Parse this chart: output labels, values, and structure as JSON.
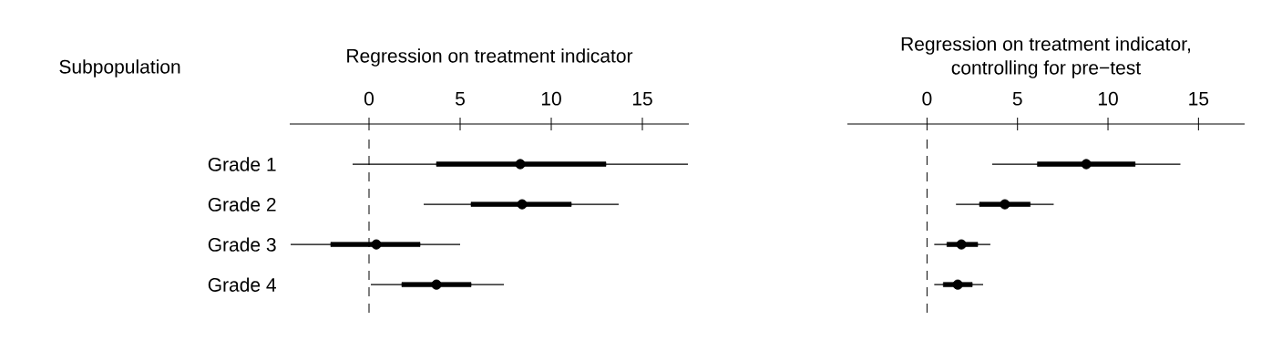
{
  "chart_data": [
    {
      "type": "box",
      "orientation": "horizontal",
      "title": "Regression on treatment indicator",
      "ylabel": "Subpopulation",
      "categories": [
        "Grade 1",
        "Grade 2",
        "Grade 3",
        "Grade 4"
      ],
      "boxes": [
        {
          "low": -0.9,
          "q1": 3.7,
          "median": 8.3,
          "q3": 13.0,
          "high": 17.5
        },
        {
          "low": 3.0,
          "q1": 5.6,
          "median": 8.4,
          "q3": 11.1,
          "high": 13.7
        },
        {
          "low": -4.3,
          "q1": -2.1,
          "median": 0.4,
          "q3": 2.8,
          "high": 5.0
        },
        {
          "low": 0.1,
          "q1": 1.8,
          "median": 3.7,
          "q3": 5.6,
          "high": 7.4
        }
      ],
      "xlim": [
        -4.35,
        17.55
      ],
      "xticks": [
        0,
        5,
        10,
        15
      ],
      "marker": "circle",
      "ref_lines": [
        {
          "axis": "x",
          "value": 0,
          "line_style": "dashed"
        }
      ]
    },
    {
      "type": "box",
      "orientation": "horizontal",
      "title": "Regression on treatment indicator,\ncontrolling for pre−test",
      "categories": [
        null,
        null,
        null,
        null
      ],
      "boxes": [
        {
          "low": 3.6,
          "q1": 6.1,
          "median": 8.8,
          "q3": 11.5,
          "high": 14.0
        },
        {
          "low": 1.6,
          "q1": 2.9,
          "median": 4.3,
          "q3": 5.7,
          "high": 7.0
        },
        {
          "low": 0.4,
          "q1": 1.1,
          "median": 1.9,
          "q3": 2.8,
          "high": 3.5
        },
        {
          "low": 0.4,
          "q1": 0.9,
          "median": 1.7,
          "q3": 2.5,
          "high": 3.1
        }
      ],
      "xlim": [
        -4.4,
        17.55
      ],
      "xticks": [
        0,
        5,
        10,
        15
      ],
      "marker": "circle",
      "ref_lines": [
        {
          "axis": "x",
          "value": 0,
          "line_style": "dashed"
        }
      ]
    }
  ]
}
